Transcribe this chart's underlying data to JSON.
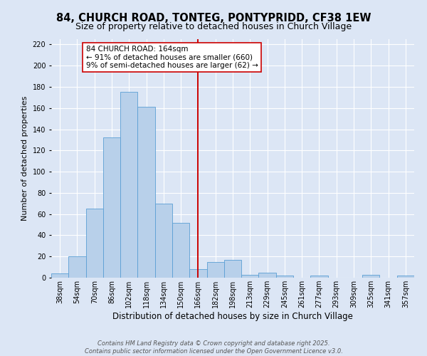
{
  "title": "84, CHURCH ROAD, TONTEG, PONTYPRIDD, CF38 1EW",
  "subtitle": "Size of property relative to detached houses in Church Village",
  "xlabel": "Distribution of detached houses by size in Church Village",
  "ylabel": "Number of detached properties",
  "bar_labels": [
    "38sqm",
    "54sqm",
    "70sqm",
    "86sqm",
    "102sqm",
    "118sqm",
    "134sqm",
    "150sqm",
    "166sqm",
    "182sqm",
    "198sqm",
    "213sqm",
    "229sqm",
    "245sqm",
    "261sqm",
    "277sqm",
    "293sqm",
    "309sqm",
    "325sqm",
    "341sqm",
    "357sqm"
  ],
  "bar_values": [
    4,
    20,
    65,
    132,
    175,
    161,
    70,
    52,
    8,
    15,
    17,
    3,
    5,
    2,
    0,
    2,
    0,
    0,
    3,
    0,
    2
  ],
  "bar_color": "#b8d0ea",
  "bar_edge_color": "#5a9fd4",
  "ylim": [
    0,
    225
  ],
  "yticks": [
    0,
    20,
    40,
    60,
    80,
    100,
    120,
    140,
    160,
    180,
    200,
    220
  ],
  "vline_x_index": 8,
  "vline_color": "#cc0000",
  "annotation_title": "84 CHURCH ROAD: 164sqm",
  "annotation_line1": "← 91% of detached houses are smaller (660)",
  "annotation_line2": "9% of semi-detached houses are larger (62) →",
  "annotation_box_color": "#ffffff",
  "annotation_box_edge": "#cc0000",
  "background_color": "#dce6f5",
  "plot_bg_color": "#dce6f5",
  "grid_color": "#ffffff",
  "footer_line1": "Contains HM Land Registry data © Crown copyright and database right 2025.",
  "footer_line2": "Contains public sector information licensed under the Open Government Licence v3.0.",
  "title_fontsize": 10.5,
  "subtitle_fontsize": 9,
  "xlabel_fontsize": 8.5,
  "ylabel_fontsize": 8,
  "tick_fontsize": 7,
  "annotation_fontsize": 7.5,
  "footer_fontsize": 6
}
